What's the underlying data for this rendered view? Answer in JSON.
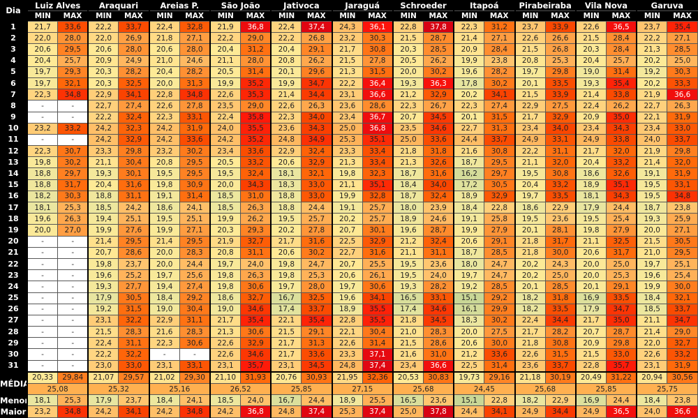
{
  "header": {
    "dia_label": "Dia",
    "min_label": "MIN",
    "max_label": "MAX",
    "media_label": "MÉDIA",
    "menor_label": "Menor",
    "maior_label": "Maior"
  },
  "stations": [
    {
      "name": "Luiz Alves",
      "min": [
        "21,7",
        "22,0",
        "20,6",
        "20,4",
        "19,7",
        "19,7",
        "22,3",
        "-",
        "-",
        "23,2",
        "-",
        "22,3",
        "19,8",
        "18,8",
        "18,8",
        "18,2",
        "18,1",
        "19,6",
        "20,0",
        "-",
        "-",
        "-",
        "-",
        "-",
        "-",
        "-",
        "-",
        "-",
        "-",
        "-",
        "-"
      ],
      "max": [
        "33,6",
        "28,0",
        "29,5",
        "25,7",
        "29,3",
        "32,1",
        "34,8",
        "-",
        "-",
        "33,2",
        "-",
        "30,7",
        "30,2",
        "29,7",
        "31,7",
        "30,3",
        "25,3",
        "26,3",
        "27,0",
        "-",
        "-",
        "-",
        "-",
        "-",
        "-",
        "-",
        "-",
        "-",
        "-",
        "-",
        "-"
      ],
      "media_min": "20,33",
      "media_max": "29,84",
      "media": "25,08",
      "menor_min": "18,1",
      "menor_max": "25,3",
      "maior_min": "23,2",
      "maior_max": "34,8"
    },
    {
      "name": "Araquari",
      "min": [
        "22,2",
        "22,0",
        "20,6",
        "20,9",
        "20,3",
        "20,3",
        "22,9",
        "22,7",
        "22,2",
        "24,2",
        "24,2",
        "23,3",
        "21,1",
        "19,3",
        "20,4",
        "18,8",
        "18,5",
        "19,4",
        "19,9",
        "21,4",
        "20,7",
        "19,8",
        "19,6",
        "19,3",
        "17,9",
        "19,2",
        "23,1",
        "21,5",
        "22,4",
        "22,2",
        "23,0"
      ],
      "max": [
        "33,7",
        "26,9",
        "28,0",
        "24,9",
        "28,2",
        "32,5",
        "34,1",
        "27,4",
        "32,4",
        "32,3",
        "32,9",
        "29,8",
        "30,4",
        "30,1",
        "31,6",
        "31,1",
        "24,2",
        "25,1",
        "27,6",
        "29,5",
        "28,6",
        "23,7",
        "25,2",
        "27,7",
        "30,5",
        "31,5",
        "32,2",
        "28,3",
        "31,1",
        "32,2",
        "33,0"
      ],
      "media_min": "21,07",
      "media_max": "29,57",
      "media": "25,32",
      "menor_min": "17,9",
      "menor_max": "23,7",
      "maior_min": "24,2",
      "maior_max": "34,1"
    },
    {
      "name": "Areias P.",
      "min": [
        "22,4",
        "21,8",
        "20,6",
        "21,0",
        "20,4",
        "20,0",
        "22,8",
        "22,6",
        "22,3",
        "24,2",
        "24,2",
        "23,2",
        "20,8",
        "19,5",
        "19,8",
        "19,1",
        "18,6",
        "19,5",
        "19,9",
        "21,4",
        "20,0",
        "20,0",
        "19,7",
        "19,4",
        "18,4",
        "19,0",
        "22,9",
        "21,6",
        "22,3",
        "-",
        "23,1"
      ],
      "max": [
        "32,8",
        "27,1",
        "28,0",
        "24,6",
        "28,2",
        "31,3",
        "34,8",
        "27,8",
        "33,1",
        "31,9",
        "33,6",
        "30,2",
        "29,5",
        "29,5",
        "30,9",
        "31,4",
        "24,1",
        "25,1",
        "27,1",
        "29,5",
        "28,3",
        "24,4",
        "25,6",
        "27,4",
        "29,2",
        "30,4",
        "31,1",
        "28,3",
        "30,6",
        "-",
        "33,1"
      ],
      "media_min": "21,02",
      "media_max": "29,30",
      "media": "25,16",
      "menor_min": "18,4",
      "menor_max": "24,1",
      "maior_min": "24,2",
      "maior_max": "34,8"
    },
    {
      "name": "São João",
      "min": [
        "21,9",
        "22,2",
        "20,4",
        "21,1",
        "20,5",
        "19,9",
        "22,6",
        "23,5",
        "22,4",
        "24,0",
        "24,2",
        "23,4",
        "20,5",
        "19,5",
        "20,0",
        "18,5",
        "18,5",
        "19,9",
        "20,3",
        "21,9",
        "20,8",
        "19,7",
        "19,8",
        "19,8",
        "18,6",
        "19,0",
        "21,7",
        "21,3",
        "22,6",
        "22,6",
        "23,1"
      ],
      "max": [
        "36,8",
        "29,0",
        "31,2",
        "28,0",
        "31,4",
        "35,2",
        "35,3",
        "29,0",
        "35,8",
        "35,5",
        "35,2",
        "33,6",
        "33,2",
        "32,4",
        "34,3",
        "31,0",
        "26,3",
        "26,2",
        "29,3",
        "32,7",
        "31,1",
        "24,0",
        "26,3",
        "30,6",
        "32,7",
        "34,6",
        "35,4",
        "30,6",
        "32,9",
        "34,6",
        "35,7"
      ],
      "media_min": "21,10",
      "media_max": "31,93",
      "media": "26,52",
      "menor_min": "18,5",
      "menor_max": "24,0",
      "maior_min": "24,2",
      "maior_max": "36,8"
    },
    {
      "name": "Jativoca",
      "min": [
        "22,4",
        "22,2",
        "20,4",
        "20,8",
        "20,1",
        "19,9",
        "21,4",
        "22,6",
        "22,3",
        "23,6",
        "24,8",
        "22,9",
        "20,6",
        "18,1",
        "18,3",
        "18,8",
        "18,8",
        "19,5",
        "20,2",
        "21,7",
        "20,6",
        "19,8",
        "19,8",
        "19,7",
        "16,7",
        "17,4",
        "22,1",
        "21,5",
        "21,7",
        "21,7",
        "23,1"
      ],
      "max": [
        "37,4",
        "26,8",
        "29,1",
        "26,2",
        "29,6",
        "34,7",
        "34,4",
        "26,3",
        "34,0",
        "34,3",
        "34,9",
        "32,4",
        "32,9",
        "32,1",
        "33,0",
        "33,0",
        "24,4",
        "25,7",
        "27,8",
        "31,6",
        "30,2",
        "24,7",
        "25,3",
        "28,0",
        "32,5",
        "33,7",
        "35,4",
        "29,1",
        "31,3",
        "33,6",
        "34,5"
      ],
      "media_min": "20,76",
      "media_max": "30,93",
      "media": "25,85",
      "menor_min": "16,7",
      "menor_max": "24,4",
      "maior_min": "24,8",
      "maior_max": "37,4"
    },
    {
      "name": "Jaraguá",
      "min": [
        "24,3",
        "23,2",
        "21,7",
        "21,5",
        "21,3",
        "22,2",
        "23,1",
        "23,6",
        "23,4",
        "25,0",
        "25,3",
        "23,3",
        "21,3",
        "19,8",
        "21,1",
        "19,9",
        "19,1",
        "20,2",
        "20,7",
        "22,5",
        "22,7",
        "20,7",
        "20,6",
        "19,7",
        "19,6",
        "18,9",
        "22,8",
        "22,1",
        "22,6",
        "23,3",
        "24,8"
      ],
      "max": [
        "36,1",
        "30,3",
        "30,8",
        "27,8",
        "31,5",
        "36,4",
        "36,6",
        "28,6",
        "36,7",
        "36,8",
        "35,1",
        "33,4",
        "33,4",
        "32,3",
        "35,1",
        "32,8",
        "25,7",
        "25,7",
        "30,1",
        "32,9",
        "31,6",
        "25,5",
        "26,1",
        "30,6",
        "34,1",
        "35,5",
        "35,5",
        "30,4",
        "31,4",
        "37,1",
        "37,4"
      ],
      "media_min": "21,95",
      "media_max": "32,36",
      "media": "27,15",
      "menor_min": "18,9",
      "menor_max": "25,5",
      "maior_min": "25,3",
      "maior_max": "37,4"
    },
    {
      "name": "Schroeder",
      "min": [
        "22,8",
        "21,5",
        "20,3",
        "20,5",
        "20,0",
        "19,3",
        "21,2",
        "22,3",
        "20,7",
        "23,5",
        "25,0",
        "21,8",
        "21,3",
        "18,7",
        "18,4",
        "18,7",
        "18,0",
        "18,9",
        "19,6",
        "21,2",
        "21,1",
        "19,5",
        "19,5",
        "19,3",
        "16,5",
        "17,4",
        "21,8",
        "21,0",
        "21,5",
        "21,6",
        "23,4"
      ],
      "max": [
        "37,8",
        "28,7",
        "28,5",
        "26,2",
        "30,2",
        "36,3",
        "32,9",
        "26,7",
        "34,5",
        "34,6",
        "33,6",
        "31,8",
        "32,6",
        "31,6",
        "34,0",
        "32,4",
        "23,9",
        "24,6",
        "28,7",
        "32,4",
        "31,1",
        "23,6",
        "24,0",
        "28,2",
        "33,1",
        "34,6",
        "34,5",
        "28,3",
        "28,6",
        "31,0",
        "36,6"
      ],
      "media_min": "20,53",
      "media_max": "30,83",
      "media": "25,68",
      "menor_min": "16,5",
      "menor_max": "23,6",
      "maior_min": "25,0",
      "maior_max": "37,8"
    },
    {
      "name": "Itapoá",
      "min": [
        "22,3",
        "21,4",
        "20,9",
        "19,9",
        "19,6",
        "17,8",
        "20,2",
        "22,3",
        "20,1",
        "22,7",
        "24,4",
        "21,6",
        "18,7",
        "16,2",
        "17,2",
        "18,9",
        "18,4",
        "19,1",
        "19,9",
        "20,6",
        "18,7",
        "18,0",
        "19,7",
        "19,2",
        "15,1",
        "16,1",
        "18,3",
        "20,0",
        "20,6",
        "21,2",
        "22,5"
      ],
      "max": [
        "31,2",
        "27,1",
        "28,4",
        "23,8",
        "28,2",
        "30,2",
        "34,1",
        "27,4",
        "31,5",
        "31,3",
        "33,7",
        "30,8",
        "29,5",
        "29,7",
        "30,5",
        "32,9",
        "22,8",
        "25,8",
        "27,9",
        "29,1",
        "28,5",
        "24,7",
        "24,7",
        "28,5",
        "29,2",
        "29,9",
        "30,2",
        "27,5",
        "30,0",
        "33,6",
        "31,4"
      ],
      "media_min": "19,73",
      "media_max": "29,16",
      "media": "24,45",
      "menor_min": "15,1",
      "menor_max": "22,8",
      "maior_min": "24,4",
      "maior_max": "34,1"
    },
    {
      "name": "Pirabeiraba",
      "min": [
        "23,7",
        "22,6",
        "21,5",
        "20,8",
        "19,7",
        "20,1",
        "21,5",
        "22,9",
        "21,7",
        "23,4",
        "24,9",
        "22,2",
        "21,1",
        "19,5",
        "20,4",
        "19,7",
        "18,6",
        "19,5",
        "20,1",
        "21,8",
        "21,8",
        "20,2",
        "20,2",
        "20,1",
        "18,2",
        "18,2",
        "22,4",
        "21,7",
        "21,8",
        "22,6",
        "23,6"
      ],
      "max": [
        "33,9",
        "26,6",
        "26,8",
        "25,3",
        "29,8",
        "33,5",
        "33,9",
        "27,5",
        "32,9",
        "34,0",
        "33,1",
        "31,1",
        "32,0",
        "30,8",
        "33,2",
        "33,5",
        "22,9",
        "23,6",
        "28,1",
        "31,7",
        "30,0",
        "24,3",
        "25,0",
        "28,5",
        "31,8",
        "33,5",
        "34,4",
        "28,2",
        "30,8",
        "31,5",
        "33,7"
      ],
      "media_min": "21,18",
      "media_max": "30,19",
      "media": "25,68",
      "menor_min": "18,2",
      "menor_max": "22,9",
      "maior_min": "24,9",
      "maior_max": "34,4"
    },
    {
      "name": "Vila Nova",
      "min": [
        "22,6",
        "21,5",
        "20,3",
        "20,4",
        "19,0",
        "19,3",
        "21,4",
        "22,4",
        "20,9",
        "23,4",
        "24,9",
        "21,7",
        "20,4",
        "18,6",
        "18,9",
        "18,1",
        "17,9",
        "19,5",
        "19,8",
        "21,1",
        "20,6",
        "20,0",
        "20,0",
        "20,1",
        "16,9",
        "17,9",
        "21,7",
        "20,7",
        "20,9",
        "21,5",
        "22,8"
      ],
      "max": [
        "36,5",
        "28,4",
        "28,4",
        "25,7",
        "31,4",
        "35,4",
        "33,8",
        "26,2",
        "35,0",
        "34,3",
        "33,8",
        "32,0",
        "33,2",
        "32,6",
        "35,1",
        "34,3",
        "24,4",
        "25,4",
        "27,9",
        "32,5",
        "31,7",
        "25,0",
        "25,3",
        "29,1",
        "33,5",
        "34,7",
        "35,0",
        "28,7",
        "29,8",
        "33,0",
        "35,7"
      ],
      "media_min": "20,49",
      "media_max": "31,22",
      "media": "25,85",
      "menor_min": "16,9",
      "menor_max": "24,4",
      "maior_min": "24,9",
      "maior_max": "36,5"
    },
    {
      "name": "Garuva",
      "min": [
        "23,7",
        "22,2",
        "21,3",
        "20,2",
        "19,2",
        "20,2",
        "21,9",
        "22,7",
        "22,1",
        "23,4",
        "24,0",
        "21,9",
        "21,4",
        "19,1",
        "19,5",
        "19,5",
        "18,7",
        "19,3",
        "20,0",
        "21,5",
        "21,0",
        "19,7",
        "19,6",
        "19,9",
        "18,4",
        "18,5",
        "21,1",
        "21,4",
        "22,0",
        "22,6",
        "23,1"
      ],
      "max": [
        "35,4",
        "27,1",
        "28,5",
        "25,0",
        "30,3",
        "33,3",
        "36,6",
        "26,3",
        "31,9",
        "33,0",
        "33,7",
        "29,8",
        "32,0",
        "31,9",
        "33,1",
        "34,8",
        "23,8",
        "25,9",
        "27,1",
        "30,5",
        "29,5",
        "25,1",
        "25,4",
        "30,0",
        "32,1",
        "33,7",
        "34,7",
        "29,0",
        "32,7",
        "33,2",
        "31,9"
      ],
      "media_min": "20,94",
      "media_max": "30,56",
      "media": "25,75",
      "menor_min": "18,4",
      "menor_max": "23,8",
      "maior_min": "24,0",
      "maior_max": "36,6"
    }
  ],
  "days": [
    "1",
    "2",
    "3",
    "4",
    "5",
    "6",
    "7",
    "8",
    "9",
    "10",
    "11",
    "12",
    "13",
    "14",
    "15",
    "16",
    "17",
    "18",
    "19",
    "20",
    "21",
    "22",
    "23",
    "24",
    "25",
    "26",
    "27",
    "28",
    "29",
    "30",
    "31"
  ]
}
